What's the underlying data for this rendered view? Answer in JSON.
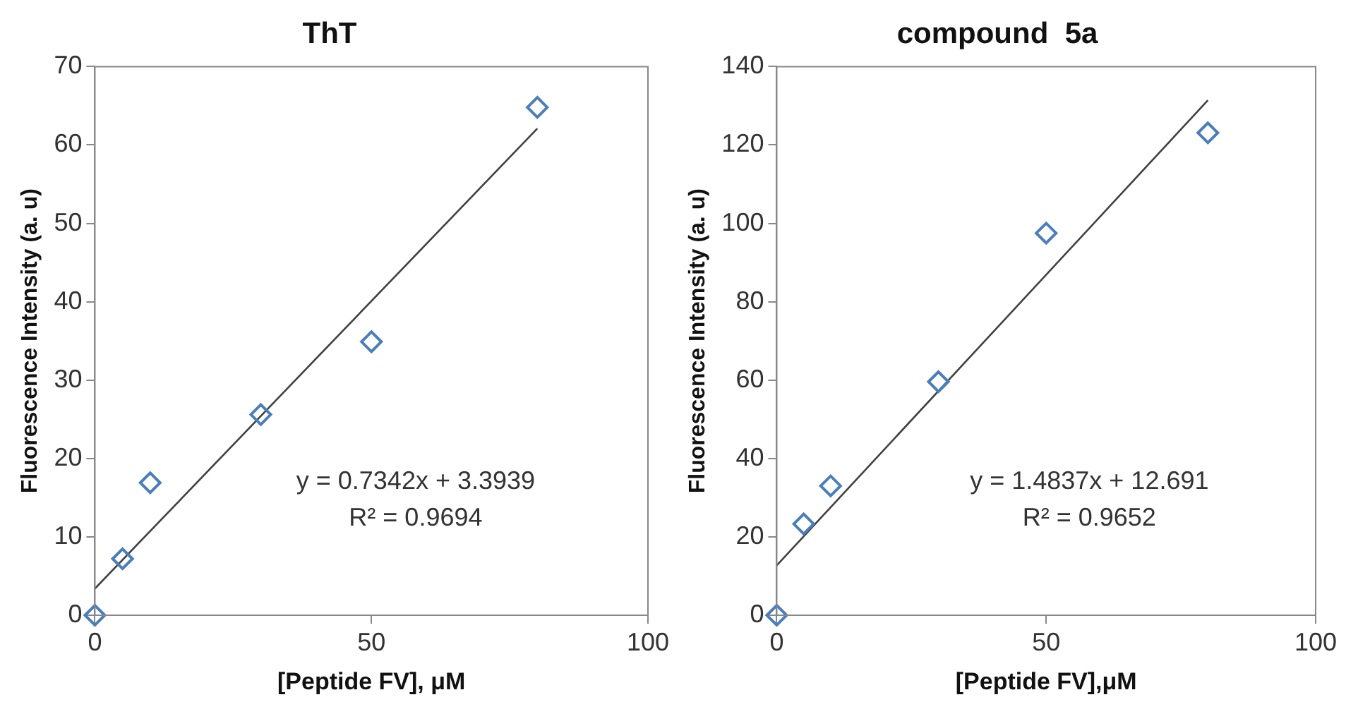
{
  "chart_data": [
    {
      "type": "scatter",
      "title": "ThT",
      "xlabel": "[Peptide FV], μM",
      "ylabel": "Fluorescence Intensity (a. u)",
      "xlim": [
        0,
        100
      ],
      "xticks": [
        0,
        50,
        100
      ],
      "ylim": [
        0,
        70
      ],
      "yticks": [
        0,
        10,
        20,
        30,
        40,
        50,
        60,
        70
      ],
      "grid": false,
      "legend": false,
      "series": [
        {
          "color": "#4a7ebb",
          "marker": "diamond",
          "x": [
            0,
            5,
            10,
            30,
            50,
            80
          ],
          "values": [
            0,
            7.2,
            16.9,
            25.6,
            34.9,
            64.8
          ]
        },
        {
          "type": "line",
          "color": "#404040",
          "marker": "none",
          "x": [
            0,
            80
          ],
          "values": [
            3.4,
            62.1
          ]
        }
      ],
      "annotations": [
        "y = 0.7342x + 3.3939",
        "R² = 0.9694"
      ]
    },
    {
      "type": "scatter",
      "title": "compound  5a",
      "xlabel": "[Peptide FV],μM",
      "ylabel": "Fluorescence Intensity (a. u)",
      "xlim": [
        0,
        100
      ],
      "xticks": [
        0,
        50,
        100
      ],
      "ylim": [
        0,
        140
      ],
      "yticks": [
        0,
        20,
        40,
        60,
        80,
        100,
        120,
        140
      ],
      "grid": false,
      "legend": false,
      "series": [
        {
          "color": "#4a7ebb",
          "marker": "diamond",
          "x": [
            0,
            5,
            10,
            30,
            50,
            80
          ],
          "values": [
            0,
            23.3,
            33.0,
            59.6,
            97.5,
            123.1
          ]
        },
        {
          "type": "line",
          "color": "#404040",
          "marker": "none",
          "x": [
            0,
            80
          ],
          "values": [
            12.7,
            131.4
          ]
        }
      ],
      "annotations": [
        "y = 1.4837x + 12.691",
        "R² = 0.9652"
      ]
    }
  ]
}
